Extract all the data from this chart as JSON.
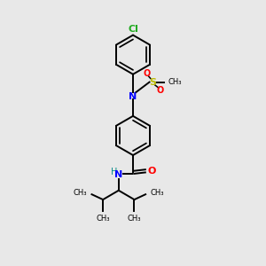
{
  "bg_color": "#e8e8e8",
  "bond_color": "#000000",
  "cl_color": "#22aa22",
  "n_color": "#0000ff",
  "o_color": "#ff0000",
  "s_color": "#bbbb00",
  "h_color": "#008888",
  "font_size": 8,
  "line_width": 1.4,
  "xlim": [
    0,
    10
  ],
  "ylim": [
    0,
    10
  ]
}
